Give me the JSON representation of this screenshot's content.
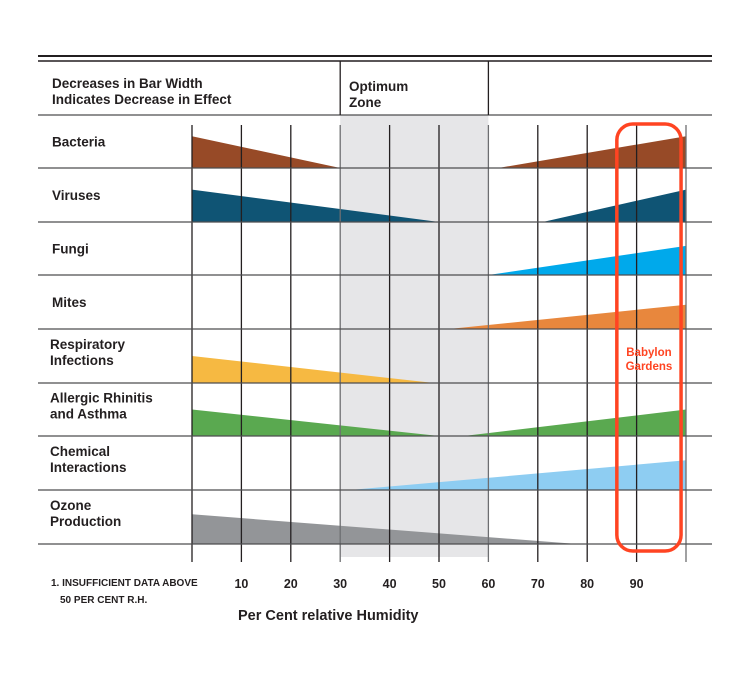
{
  "chart_data": {
    "type": "area",
    "title": "Decreases in Bar Width Indicates Decrease in Effect",
    "header": {
      "left_lines": [
        "Decreases in Bar Width",
        "Indicates Decrease in Effect"
      ],
      "optimum_lines": [
        "Optimum",
        "Zone"
      ]
    },
    "optimum_zone": [
      30,
      60
    ],
    "xlabel": "Per Cent relative Humidity",
    "xlim": [
      0,
      100
    ],
    "x_ticks": [
      0,
      10,
      20,
      30,
      40,
      50,
      60,
      70,
      80,
      90,
      100
    ],
    "x_tick_labels": [
      "10",
      "20",
      "30",
      "40",
      "50",
      "60",
      "70",
      "80",
      "90"
    ],
    "footnote_lines": [
      "1. INSUFFICIENT DATA ABOVE",
      "50 PER CENT R.H."
    ],
    "annotation": {
      "lines": [
        "Babylon",
        "Gardens"
      ],
      "x_range": [
        86,
        99
      ],
      "color": "#ff4422"
    },
    "rows": [
      {
        "label_lines": [
          "Bacteria"
        ],
        "color": "#974a27",
        "segments": [
          {
            "from": 0,
            "to": 30,
            "start_width": 0.6,
            "end_width": 0
          },
          {
            "from": 62,
            "to": 100,
            "start_width": 0,
            "end_width": 0.6
          }
        ]
      },
      {
        "label_lines": [
          "Viruses"
        ],
        "color": "#0f5474",
        "segments": [
          {
            "from": 0,
            "to": 50,
            "start_width": 0.6,
            "end_width": 0
          },
          {
            "from": 71,
            "to": 100,
            "start_width": 0,
            "end_width": 0.6
          }
        ]
      },
      {
        "label_lines": [
          "Fungi"
        ],
        "color": "#00a9eb",
        "segments": [
          {
            "from": 60,
            "to": 100,
            "start_width": 0,
            "end_width": 0.55
          }
        ]
      },
      {
        "label_lines": [
          "Mites"
        ],
        "color": "#e8873d",
        "segments": [
          {
            "from": 52,
            "to": 100,
            "start_width": 0,
            "end_width": 0.45
          }
        ]
      },
      {
        "label_lines": [
          "Respiratory",
          "Infections"
        ],
        "color": "#f6b942",
        "segments": [
          {
            "from": 0,
            "to": 49,
            "start_width": 0.5,
            "end_width": 0
          }
        ]
      },
      {
        "label_lines": [
          "Allergic Rhinitis",
          "and Asthma"
        ],
        "color": "#5aa950",
        "segments": [
          {
            "from": 0,
            "to": 50,
            "start_width": 0.5,
            "end_width": 0
          },
          {
            "from": 55,
            "to": 100,
            "start_width": 0,
            "end_width": 0.5
          }
        ]
      },
      {
        "label_lines": [
          "Chemical",
          "Interactions"
        ],
        "color": "#8ecdf2",
        "segments": [
          {
            "from": 32,
            "to": 100,
            "start_width": 0,
            "end_width": 0.55
          }
        ]
      },
      {
        "label_lines": [
          "Ozone",
          "Production"
        ],
        "color": "#939598",
        "segments": [
          {
            "from": 0,
            "to": 78,
            "start_width": 0.55,
            "end_width": 0
          }
        ]
      }
    ],
    "grid": true
  },
  "colors": {
    "grid": "#231f20",
    "optimum_fill": "#e6e6e8"
  }
}
